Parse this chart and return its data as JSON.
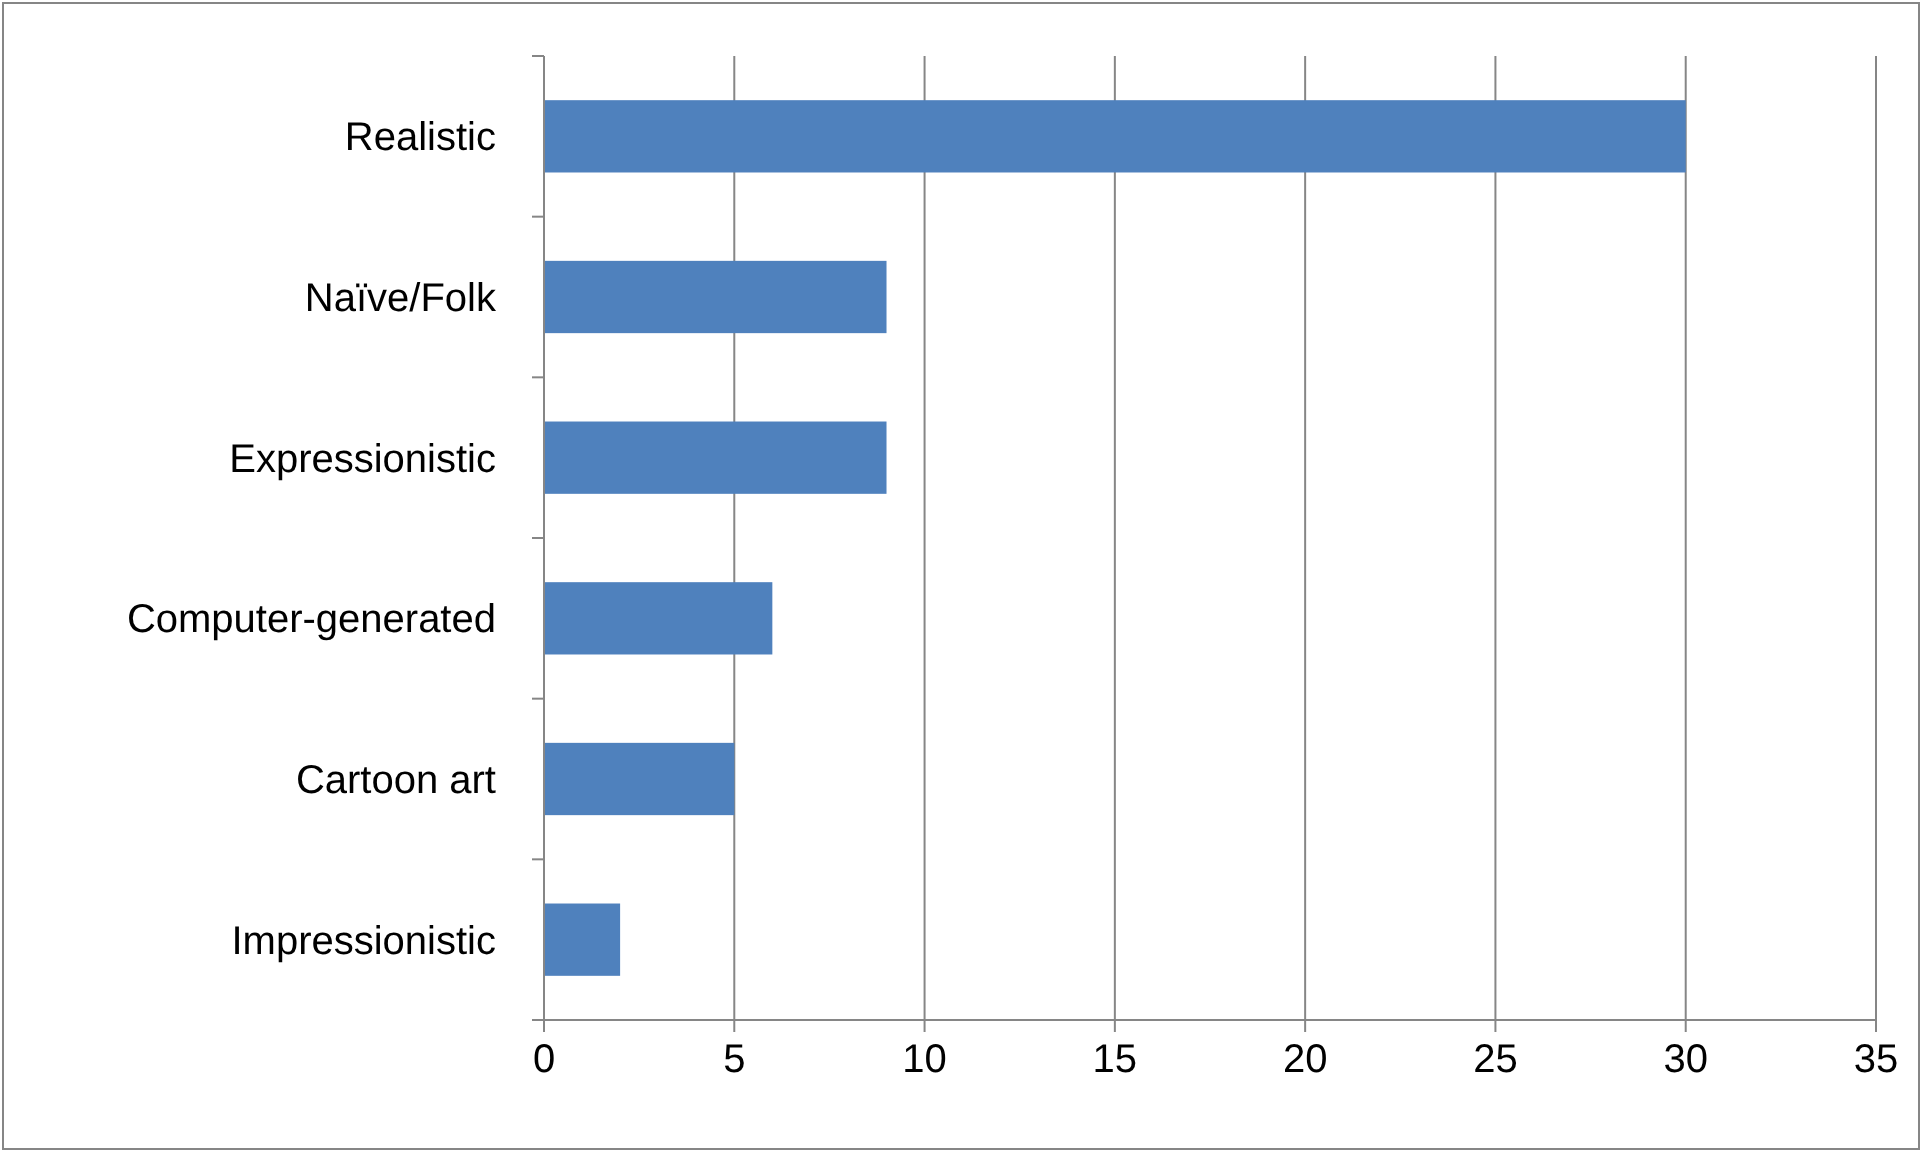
{
  "chart_data": {
    "type": "bar",
    "orientation": "horizontal",
    "categories": [
      "Realistic",
      "Naïve/Folk",
      "Expressionistic",
      "Computer-generated",
      "Cartoon art",
      "Impressionistic"
    ],
    "values": [
      30,
      9,
      9,
      6,
      5,
      2
    ],
    "color": "#4f81bd",
    "xlim": [
      0,
      35
    ],
    "xticks": [
      0,
      5,
      10,
      15,
      20,
      25,
      30,
      35
    ],
    "grid": "x"
  }
}
